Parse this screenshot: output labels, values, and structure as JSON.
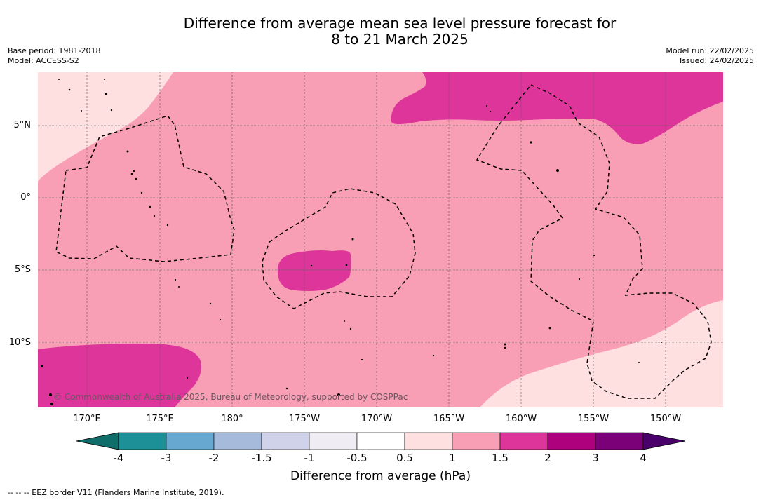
{
  "title_line1": "Difference from average mean sea level pressure forecast for",
  "title_line2": "8 to 21 March 2025",
  "meta": {
    "base_period": "Base period: 1981-2018",
    "model": "Model: ACCESS-S2",
    "model_run": "Model run: 22/02/2025",
    "issued": "Issued: 24/02/2025"
  },
  "map": {
    "lat_labels": [
      "5°N",
      "0°",
      "5°S",
      "10°S"
    ],
    "lon_labels": [
      "170°E",
      "175°E",
      "180°",
      "175°W",
      "170°W",
      "165°W",
      "160°W",
      "155°W",
      "150°W"
    ],
    "copyright": "© Commonwealth of Australia 2025, Bureau of Meteorology, supported by COSPPac",
    "colors": {
      "band_0.5_1": "#fde0df",
      "band_1_1.5": "#f99fb5",
      "band_1.5_2": "#dd359a"
    }
  },
  "colorbar": {
    "title": "Difference from average (hPa)",
    "ticks": [
      "-4",
      "-3",
      "-2",
      "-1.5",
      "-1",
      "-0.5",
      "0.5",
      "1",
      "1.5",
      "2",
      "3",
      "4"
    ],
    "colors": [
      "#0f6e6a",
      "#1c8f97",
      "#67a8d0",
      "#a6badb",
      "#cfd2e8",
      "#efecf3",
      "#ffffff",
      "#fde0df",
      "#f99fb5",
      "#dd359a",
      "#ad017e",
      "#7a0177",
      "#49006a"
    ]
  },
  "footnote": "--  --  -- EEZ border V11 (Flanders Marine Institute, 2019)."
}
